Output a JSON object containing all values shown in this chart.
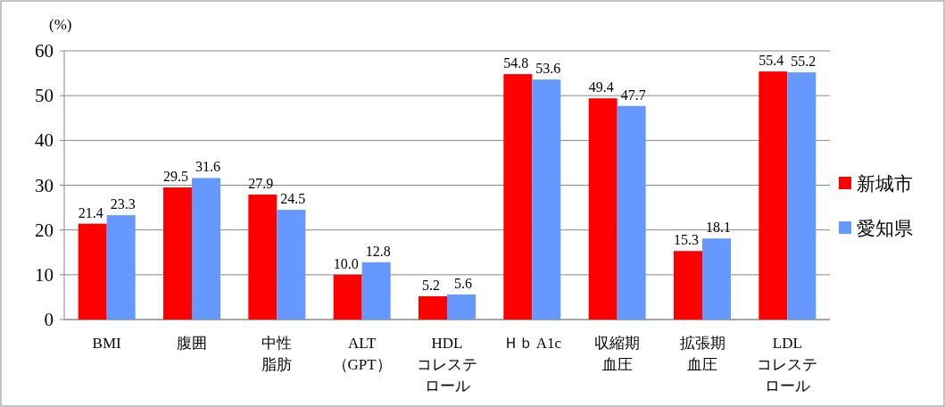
{
  "chart_data": {
    "type": "bar",
    "ylabel": "(%)",
    "categories": [
      "BMI",
      "腹囲",
      "中性脂肪",
      "ALT\n（GPT）",
      "HDL\nコレステロール",
      "Ｈｂ A1c",
      "収縮期血圧",
      "拡張期血圧",
      "LDL\nコレステロール"
    ],
    "series": [
      {
        "name": "新城市",
        "color": "#ff0000",
        "values": [
          21.4,
          29.5,
          27.9,
          10.0,
          5.2,
          54.8,
          49.4,
          15.3,
          55.4
        ],
        "value_labels": [
          "21.4",
          "29.5",
          "27.9",
          "10.0",
          "5.2",
          "54.8",
          "49.4",
          "15.3",
          "55.4"
        ]
      },
      {
        "name": "愛知県",
        "color": "#6699ff",
        "values": [
          23.3,
          31.6,
          24.5,
          12.8,
          5.6,
          53.6,
          47.7,
          18.1,
          55.2
        ],
        "value_labels": [
          "23.3",
          "31.6",
          "24.5",
          "12.8",
          "5.6",
          "53.6",
          "47.7",
          "18.1",
          "55.2"
        ]
      }
    ],
    "ylim": [
      0,
      60
    ],
    "yticks": [
      0,
      10,
      20,
      30,
      40,
      50,
      60
    ],
    "grid": "y",
    "legend": "right"
  }
}
